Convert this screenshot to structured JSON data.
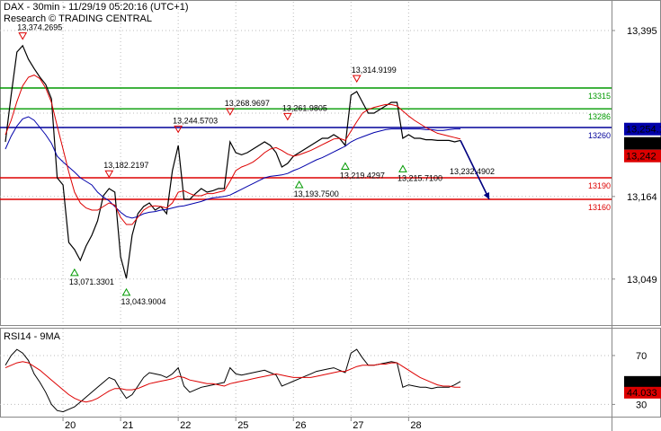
{
  "header": {
    "line1": "DAX - 30min - 11/29/19 05:20:16 (UTC+1)",
    "line2": "Research © TRADING CENTRAL"
  },
  "chart_data": [
    {
      "type": "line",
      "panel": "price",
      "ylim": [
        12985,
        13435
      ],
      "grid": true,
      "y_ticks": [
        "13,395",
        "13,164",
        "13,049"
      ],
      "y_tick_values": [
        13395,
        13164,
        13049
      ],
      "x_ticks": [
        "20",
        "21",
        "22",
        "25",
        "26",
        "27",
        "28"
      ],
      "x_tick_index": [
        10,
        20,
        30,
        40,
        50,
        60,
        70
      ],
      "x_count": 80,
      "colors": {
        "price": "#000000",
        "ma_fast": "#0000aa",
        "ma_slow": "#dd0000",
        "resistance": "#009900",
        "support": "#dd0000",
        "pivot": "#000099",
        "arrow": "#000080"
      },
      "series": [
        {
          "role": "price",
          "values": [
            13240,
            13305,
            13365,
            13374,
            13355,
            13342,
            13330,
            13320,
            13300,
            13190,
            13180,
            13100,
            13090,
            13075,
            13095,
            13110,
            13130,
            13165,
            13175,
            13170,
            13080,
            13050,
            13110,
            13140,
            13150,
            13155,
            13145,
            13150,
            13140,
            13200,
            13235,
            13160,
            13160,
            13168,
            13175,
            13170,
            13172,
            13175,
            13175,
            13240,
            13225,
            13222,
            13225,
            13230,
            13235,
            13240,
            13235,
            13225,
            13205,
            13210,
            13220,
            13225,
            13230,
            13235,
            13240,
            13245,
            13245,
            13250,
            13245,
            13235,
            13305,
            13310,
            13295,
            13280,
            13280,
            13285,
            13290,
            13295,
            13295,
            13245,
            13250,
            13245,
            13245,
            13243,
            13243,
            13242,
            13242,
            13242,
            13240,
            13242
          ]
        },
        {
          "role": "ma_fast",
          "values": [
            13230,
            13248,
            13262,
            13272,
            13275,
            13270,
            13260,
            13250,
            13238,
            13220,
            13212,
            13205,
            13198,
            13190,
            13185,
            13180,
            13170,
            13163,
            13158,
            13150,
            13142,
            13136,
            13134,
            13136,
            13140,
            13142,
            13143,
            13145,
            13146,
            13148,
            13150,
            13151,
            13153,
            13155,
            13157,
            13160,
            13162,
            13163,
            13164,
            13166,
            13170,
            13174,
            13178,
            13182,
            13186,
            13190,
            13192,
            13193,
            13194,
            13196,
            13200,
            13203,
            13207,
            13211,
            13215,
            13218,
            13222,
            13226,
            13230,
            13234,
            13240,
            13244,
            13247,
            13250,
            13253,
            13255,
            13257,
            13258,
            13258,
            13258,
            13258,
            13258,
            13258,
            13257,
            13257,
            13256,
            13256,
            13257,
            13258,
            13258
          ]
        },
        {
          "role": "ma_slow",
          "values": [
            13250,
            13270,
            13296,
            13318,
            13330,
            13333,
            13328,
            13315,
            13295,
            13262,
            13230,
            13198,
            13170,
            13155,
            13148,
            13145,
            13145,
            13150,
            13155,
            13152,
            13135,
            13125,
            13125,
            13135,
            13145,
            13150,
            13151,
            13150,
            13148,
            13155,
            13170,
            13172,
            13168,
            13165,
            13165,
            13168,
            13168,
            13170,
            13172,
            13185,
            13200,
            13205,
            13208,
            13212,
            13218,
            13225,
            13230,
            13232,
            13228,
            13223,
            13220,
            13222,
            13225,
            13228,
            13232,
            13236,
            13240,
            13244,
            13245,
            13242,
            13255,
            13268,
            13280,
            13285,
            13288,
            13290,
            13292,
            13292,
            13290,
            13283,
            13276,
            13270,
            13265,
            13260,
            13256,
            13252,
            13250,
            13248,
            13246,
            13244
          ]
        }
      ],
      "levels": [
        {
          "kind": "resistance",
          "label": "13315",
          "value": 13315
        },
        {
          "kind": "resistance",
          "label": "13286",
          "value": 13286
        },
        {
          "kind": "pivot",
          "label": "13260",
          "value": 13260
        },
        {
          "kind": "support",
          "label": "13190",
          "value": 13190
        },
        {
          "kind": "support",
          "label": "13160",
          "value": 13160
        }
      ],
      "price_boxes": [
        {
          "label": "13,254.1",
          "value": 13254.1,
          "color": "#0000aa"
        },
        {
          "label": "13,245.6",
          "value": 13245.6,
          "color": "#000000"
        },
        {
          "label": "13,242",
          "value": 13242,
          "color": "#dd0000"
        }
      ],
      "markers": [
        {
          "label": "13,374.2695",
          "index": 3,
          "value": 13374.2695,
          "dir": "down"
        },
        {
          "label": "13,071.3301",
          "index": 12,
          "value": 13071.3301,
          "dir": "up"
        },
        {
          "label": "13,182.2197",
          "index": 18,
          "value": 13182.2197,
          "dir": "down"
        },
        {
          "label": "13,043.9004",
          "index": 21,
          "value": 13043.9004,
          "dir": "up"
        },
        {
          "label": "13,244.5703",
          "index": 30,
          "value": 13244.5703,
          "dir": "down"
        },
        {
          "label": "13,268.9697",
          "index": 39,
          "value": 13268.9697,
          "dir": "down"
        },
        {
          "label": "13,261.9805",
          "index": 49,
          "value": 13261.9805,
          "dir": "down"
        },
        {
          "label": "13,193.7500",
          "index": 51,
          "value": 13193.75,
          "dir": "up"
        },
        {
          "label": "13,219.4297",
          "index": 59,
          "value": 13219.4297,
          "dir": "up"
        },
        {
          "label": "13,314.9199",
          "index": 61,
          "value": 13314.9199,
          "dir": "down"
        },
        {
          "label": "13,215.7100",
          "index": 69,
          "value": 13215.71,
          "dir": "up"
        }
      ],
      "projection": {
        "label": "13,232.4902",
        "from_index": 79,
        "from_value": 13242,
        "to_index": 84,
        "to_value": 13160
      }
    },
    {
      "type": "line",
      "panel": "rsi",
      "title": "RSI14 - 9MA",
      "ylim": [
        20,
        92
      ],
      "y_ticks": [
        "70",
        "30"
      ],
      "y_tick_values": [
        70,
        30
      ],
      "colors": {
        "rsi": "#000000",
        "ma": "#dd0000"
      },
      "series": [
        {
          "role": "rsi",
          "values": [
            62,
            70,
            75,
            72,
            66,
            55,
            48,
            40,
            30,
            25,
            24,
            26,
            28,
            32,
            36,
            40,
            44,
            48,
            52,
            50,
            42,
            35,
            38,
            45,
            52,
            56,
            55,
            54,
            52,
            55,
            60,
            45,
            40,
            42,
            44,
            45,
            46,
            47,
            48,
            60,
            55,
            54,
            55,
            56,
            57,
            58,
            56,
            54,
            45,
            47,
            49,
            51,
            53,
            55,
            57,
            58,
            59,
            60,
            58,
            56,
            72,
            75,
            68,
            62,
            62,
            63,
            64,
            65,
            64,
            44,
            46,
            45,
            44,
            44,
            43,
            44,
            44,
            44,
            46,
            48.77
          ]
        },
        {
          "role": "ma",
          "values": [
            60,
            62,
            64,
            65,
            64,
            61,
            58,
            54,
            50,
            46,
            42,
            38,
            35,
            33,
            32,
            33,
            35,
            38,
            41,
            43,
            43,
            42,
            42,
            43,
            45,
            47,
            48,
            49,
            50,
            51,
            53,
            52,
            50,
            49,
            48,
            47,
            47,
            46,
            45,
            47,
            48,
            49,
            50,
            51,
            52,
            53,
            54,
            55,
            54,
            53,
            52,
            52,
            52,
            52,
            53,
            54,
            55,
            56,
            57,
            57,
            59,
            61,
            62,
            62,
            62,
            63,
            63,
            64,
            64,
            61,
            58,
            55,
            52,
            50,
            48,
            46,
            45,
            45,
            44,
            44.03
          ]
        }
      ],
      "value_boxes": [
        {
          "label": "48.7709",
          "value": 48.7709,
          "color": "#000000"
        },
        {
          "label": "44.033",
          "value": 44.033,
          "color": "#dd0000"
        }
      ]
    }
  ]
}
